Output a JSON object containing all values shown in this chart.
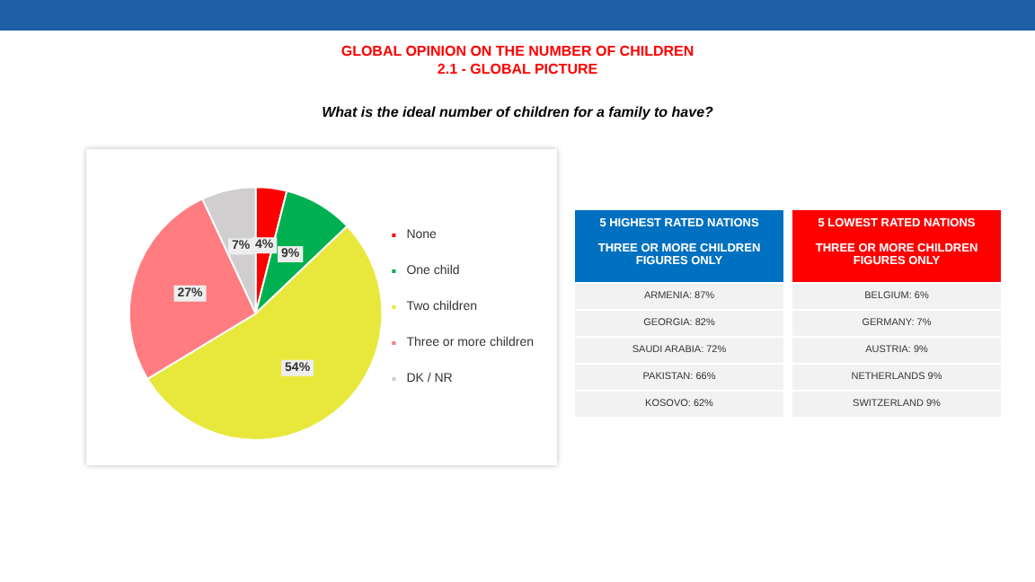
{
  "chart_data": [
    {
      "type": "pie",
      "title": "GLOBAL OPINION ON THE NUMBER OF CHILDREN",
      "subtitle": "2.1 - GLOBAL PICTURE",
      "annotations": [
        "What is the ideal number of children for a family to have?"
      ],
      "categories": [
        "None",
        "One child",
        "Two children",
        "Three or more children",
        "DK / NR"
      ],
      "values": [
        4,
        9,
        54,
        27,
        7
      ],
      "value_labels": [
        "4%",
        "9%",
        "54%",
        "27%",
        "7%"
      ],
      "colors": [
        "#ff0000",
        "#00b050",
        "#e8e83c",
        "#ff7c80",
        "#d0cece"
      ],
      "legend": "right"
    },
    {
      "type": "other",
      "title": "5 HIGHEST RATED NATIONS",
      "subtitle": "THREE OR MORE CHILDREN FIGURES ONLY",
      "color": "#0070c0",
      "annotations": [
        "ARMENIA: 87%",
        "GEORGIA: 82%",
        "SAUDI ARABIA: 72%",
        "PAKISTAN: 66%",
        "KOSOVO: 62%"
      ]
    },
    {
      "type": "other",
      "title": "5 LOWEST RATED NATIONS",
      "subtitle": "THREE OR MORE CHILDREN FIGURES ONLY",
      "color": "#ff0000",
      "annotations": [
        "BELGIUM: 6%",
        "GERMANY: 7%",
        "AUSTRIA: 9%",
        "NETHERLANDS 9%",
        "SWITZERLAND 9%"
      ]
    }
  ]
}
